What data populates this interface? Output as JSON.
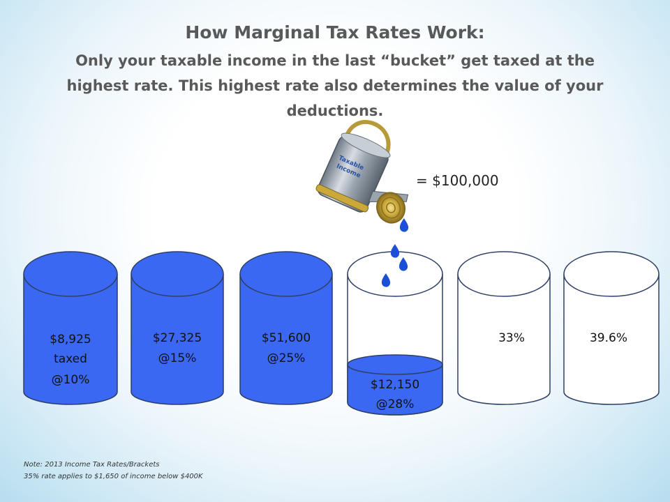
{
  "title": "How Marginal Tax Rates Work:",
  "subtitle": "Only your taxable income in the last “bucket” get taxed at the highest rate. This highest rate also determines the value of your deductions.",
  "equals_label": "= $100,000",
  "colors": {
    "fill": "#3a68f2",
    "empty": "#ffffff",
    "outline": "#2d3f66",
    "title_text": "#595959"
  },
  "buckets": [
    {
      "lines": [
        "$8,925",
        "taxed",
        "@10%"
      ],
      "filled": true
    },
    {
      "lines": [
        "$27,325",
        "@15%"
      ],
      "filled": true
    },
    {
      "lines": [
        "$51,600",
        "@25%"
      ],
      "filled": true
    },
    {
      "lines": [
        "$12,150",
        "@28%"
      ],
      "filled": "partial"
    },
    {
      "lines": [
        "33%"
      ],
      "filled": false
    },
    {
      "lines": [
        "39.6%"
      ],
      "filled": false
    }
  ],
  "watering_can_icon": "watering-can-icon",
  "notes": [
    "Note: 2013 Income Tax Rates/Brackets",
    "35% rate applies to $1,650 of income below $400K"
  ]
}
